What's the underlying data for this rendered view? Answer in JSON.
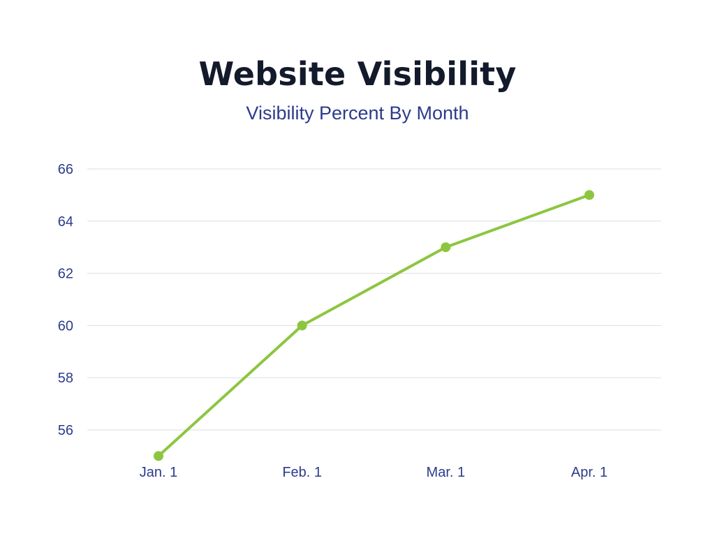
{
  "chart_data": {
    "type": "line",
    "title": "Website Visibility",
    "subtitle": "Visibility Percent By Month",
    "categories": [
      "Jan. 1",
      "Feb. 1",
      "Mar. 1",
      "Apr. 1"
    ],
    "series": [
      {
        "values": [
          55,
          60,
          63,
          65
        ]
      }
    ],
    "yticks": [
      56,
      58,
      60,
      62,
      64,
      66
    ],
    "ylim": [
      55,
      66
    ],
    "grid": true,
    "legend": "none",
    "colors": {
      "line": "#8cc63f",
      "grid": "#dcdde6",
      "labels": "#2c3b8c",
      "title": "#131a2b"
    }
  }
}
